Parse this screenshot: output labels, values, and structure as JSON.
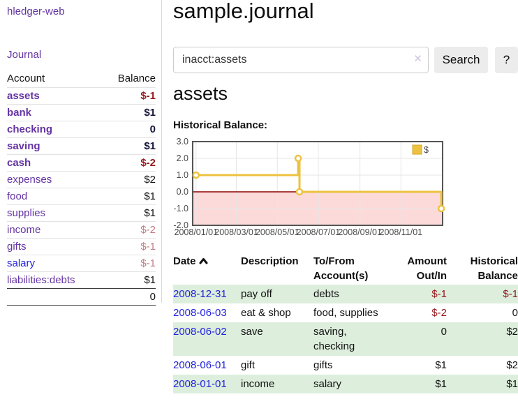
{
  "sidebar": {
    "brand": "hledger-web",
    "nav": {
      "journal": "Journal"
    },
    "table_headers": {
      "account": "Account",
      "balance": "Balance"
    },
    "accounts": [
      {
        "label": "assets",
        "level": 1,
        "bold": true,
        "link": "purple",
        "balance": "$-1",
        "tone": "neg-strong"
      },
      {
        "label": "bank",
        "level": 2,
        "bold": true,
        "link": "purple",
        "balance": "$1",
        "tone": "pos"
      },
      {
        "label": "checking",
        "level": 3,
        "bold": true,
        "link": "purple",
        "balance": "0",
        "tone": "pos"
      },
      {
        "label": "saving",
        "level": 3,
        "bold": true,
        "link": "purple",
        "balance": "$1",
        "tone": "pos"
      },
      {
        "label": "cash",
        "level": 2,
        "bold": true,
        "link": "purple",
        "balance": "$-2",
        "tone": "neg-strong"
      },
      {
        "label": "expenses",
        "level": 1,
        "bold": false,
        "link": "purple",
        "balance": "$2",
        "tone": "pos"
      },
      {
        "label": "food",
        "level": 2,
        "bold": false,
        "link": "purple",
        "balance": "$1",
        "tone": "pos"
      },
      {
        "label": "supplies",
        "level": 2,
        "bold": false,
        "link": "purple",
        "balance": "$1",
        "tone": "pos"
      },
      {
        "label": "income",
        "level": 1,
        "bold": false,
        "link": "purple",
        "balance": "$-2",
        "tone": "neg-soft"
      },
      {
        "label": "gifts",
        "level": 2,
        "bold": false,
        "link": "purple",
        "balance": "$-1",
        "tone": "neg-soft"
      },
      {
        "label": "salary",
        "level": 2,
        "bold": false,
        "link": "blue",
        "balance": "$-1",
        "tone": "neg-soft"
      },
      {
        "label": "liabilities:debts",
        "level": 1,
        "bold": false,
        "link": "purple",
        "balance": "$1",
        "tone": "pos"
      }
    ],
    "total": "0"
  },
  "header": {
    "title": "sample.journal"
  },
  "search": {
    "value": "inacct:assets",
    "clear_label": "✕",
    "button_label": "Search",
    "help_label": "?"
  },
  "account_page": {
    "heading": "assets"
  },
  "chart_data": {
    "type": "line",
    "step": true,
    "title": "Historical Balance:",
    "x_type": "date",
    "xlim": [
      "2007-12-27",
      "2009-01-02"
    ],
    "ylim": [
      -2,
      3
    ],
    "yticks": [
      3,
      2,
      1,
      0,
      -1,
      -2
    ],
    "xticks": [
      {
        "date": "2008-01-01",
        "label": "2008/01/01"
      },
      {
        "date": "2008-03-01",
        "label": "2008/03/01"
      },
      {
        "date": "2008-05-01",
        "label": "2008/05/01"
      },
      {
        "date": "2008-07-01",
        "label": "2008/07/01"
      },
      {
        "date": "2008-09-01",
        "label": "2008/09/01"
      },
      {
        "date": "2008-11-01",
        "label": "2008/11/01"
      },
      {
        "date": "2009-01-01",
        "label": ""
      }
    ],
    "series": [
      {
        "name": "$",
        "color": "#edc240",
        "points": [
          [
            "2008-01-01",
            1
          ],
          [
            "2008-06-01",
            2
          ],
          [
            "2008-06-03",
            0
          ],
          [
            "2008-12-31",
            -1
          ]
        ]
      }
    ],
    "legend": {
      "label": "$",
      "position": "top-right",
      "swatch_color": "#edc240",
      "swatch_border": "#d3a522"
    },
    "grid": true,
    "grid_color": "#e6e6e6",
    "border_color": "#555555",
    "zero_line_color": "#8b0000",
    "negative_fill": "#fcdada"
  },
  "register": {
    "columns": [
      "Date",
      "Description",
      "To/From Account(s)",
      "Amount Out/In",
      "Historical Balance"
    ],
    "rows": [
      {
        "date": "2008-12-31",
        "description": "pay off",
        "accounts": "debts",
        "amount": "$-1",
        "amount_negative": true,
        "balance": "$-1",
        "balance_negative": true
      },
      {
        "date": "2008-06-03",
        "description": "eat & shop",
        "accounts": "food, supplies",
        "amount": "$-2",
        "amount_negative": true,
        "balance": "0",
        "balance_negative": false
      },
      {
        "date": "2008-06-02",
        "description": "save",
        "accounts": "saving, checking",
        "amount": "0",
        "amount_negative": false,
        "balance": "$2",
        "balance_negative": false
      },
      {
        "date": "2008-06-01",
        "description": "gift",
        "accounts": "gifts",
        "amount": "$1",
        "amount_negative": false,
        "balance": "$2",
        "balance_negative": false
      },
      {
        "date": "2008-01-01",
        "description": "income",
        "accounts": "salary",
        "amount": "$1",
        "amount_negative": false,
        "balance": "$1",
        "balance_negative": false
      }
    ]
  },
  "colors": {
    "link_purple": "#6434a3",
    "link_blue": "#2323dd",
    "negative_strong": "#96191c",
    "negative_soft": "#c27d80",
    "row_shade_green": "#ddeedd",
    "chart_gold": "#edc240",
    "chart_negative_region": "#fcdada",
    "chart_zero_line": "#8b0000"
  }
}
